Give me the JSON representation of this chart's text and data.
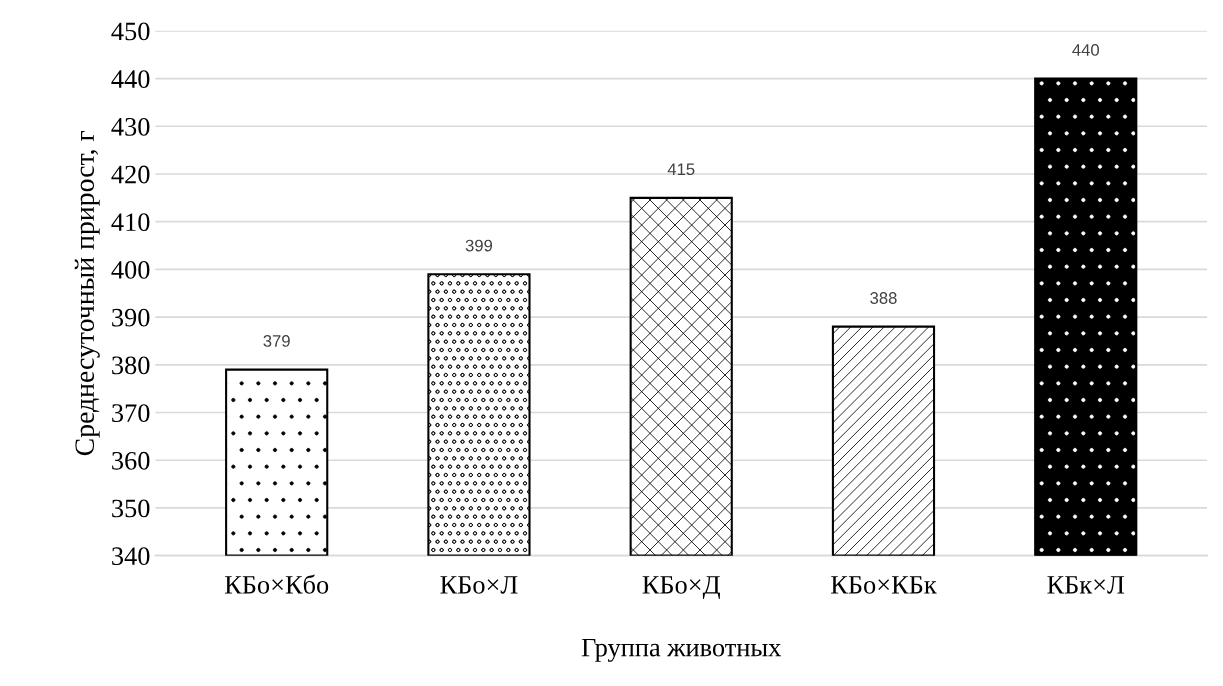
{
  "chart_data": {
    "type": "bar",
    "xlabel": "Группа животных",
    "ylabel": "Среднесуточный прирост, г",
    "categories": [
      "КБо×Кбо",
      "КБо×Л",
      "КБо×Д",
      "КБо×КБк",
      "КБк×Л"
    ],
    "values": [
      379,
      399,
      415,
      388,
      440
    ],
    "colors": [
      "#ffffff",
      "#ffffff",
      "#ffffff",
      "#ffffff",
      "#000000"
    ],
    "ylim": [
      340,
      450
    ],
    "yticks": [
      340,
      350,
      360,
      370,
      380,
      390,
      400,
      410,
      420,
      430,
      440,
      450
    ],
    "grid": "y",
    "data_labels": true
  }
}
